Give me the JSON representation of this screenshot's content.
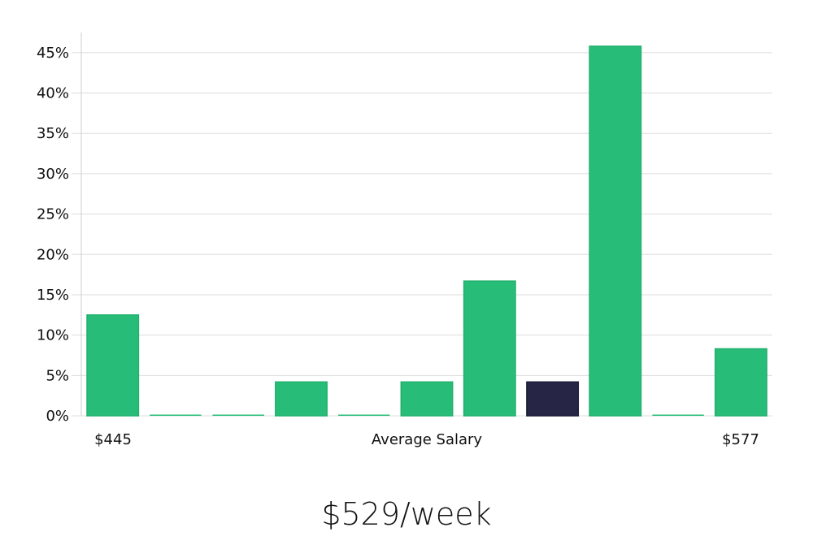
{
  "chart_data": {
    "type": "bar",
    "y_unit": "%",
    "ylim": [
      0,
      47.5
    ],
    "yticks": [
      "0%",
      "5%",
      "10%",
      "15%",
      "20%",
      "25%",
      "30%",
      "35%",
      "40%",
      "45%"
    ],
    "ytick_values": [
      0,
      5,
      10,
      15,
      20,
      25,
      30,
      35,
      40,
      45
    ],
    "values": [
      12.5,
      0,
      0,
      4.2,
      0,
      4.2,
      16.7,
      4.2,
      45.8,
      0,
      8.3
    ],
    "highlight_index": 7,
    "grid": true,
    "x_labels": {
      "left": "$445",
      "center": "Average Salary",
      "right": "$577"
    }
  },
  "colors": {
    "bar": "#27bd78",
    "bar_highlight": "#272546",
    "grid": "#dddddd",
    "axis": "#cccccc",
    "text": "#111111"
  },
  "summary": {
    "value": "$529/week"
  }
}
